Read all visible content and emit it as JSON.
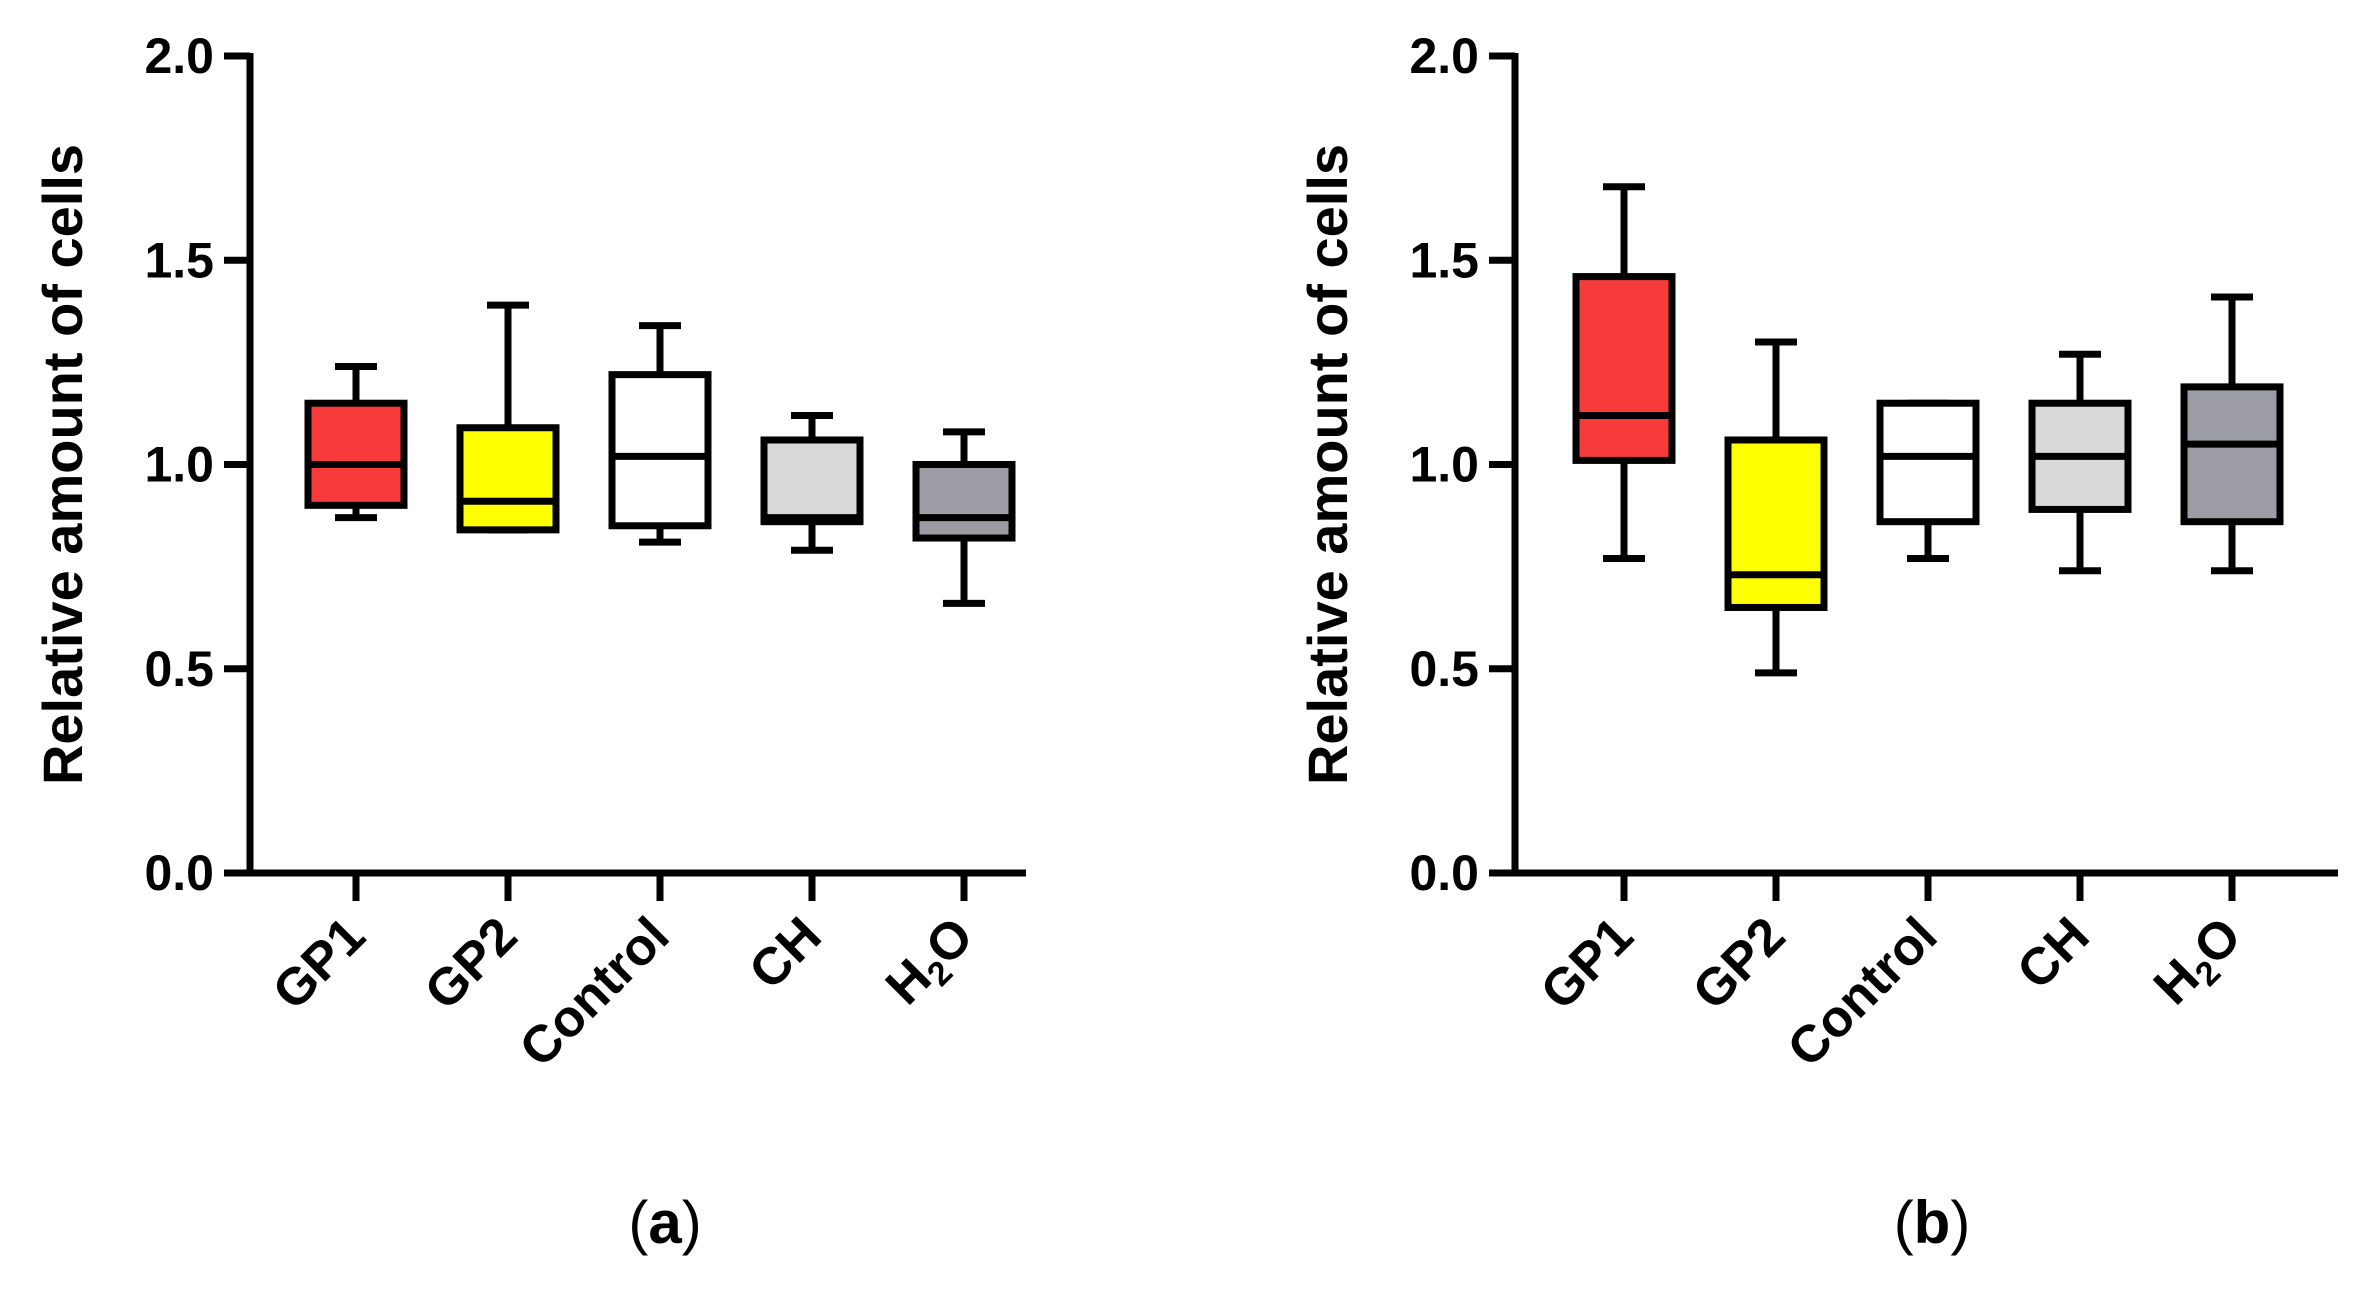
{
  "chart_data": [
    {
      "type": "box",
      "panel_label": "a",
      "ylabel": "Relative amount of cells",
      "ylim": [
        0,
        2
      ],
      "yticks": [
        {
          "value": 0.0,
          "label": "0.0"
        },
        {
          "value": 0.5,
          "label": "0.5"
        },
        {
          "value": 1.0,
          "label": "1.0"
        },
        {
          "value": 1.5,
          "label": "1.5"
        },
        {
          "value": 2.0,
          "label": "2.0"
        }
      ],
      "groups": [
        {
          "main": "GP1",
          "sub": "",
          "end": "",
          "color": "#f73b3b",
          "min": 0.87,
          "q1": 0.9,
          "median": 1.0,
          "q3": 1.15,
          "max": 1.24
        },
        {
          "main": "GP2",
          "sub": "",
          "end": "",
          "color": "#ffff00",
          "min": 0.84,
          "q1": 0.84,
          "median": 0.91,
          "q3": 1.09,
          "max": 1.39
        },
        {
          "main": "Control",
          "sub": "",
          "end": "",
          "color": "#ffffff",
          "min": 0.81,
          "q1": 0.85,
          "median": 1.02,
          "q3": 1.22,
          "max": 1.34
        },
        {
          "main": "CH",
          "sub": "",
          "end": "",
          "color": "#d9d9d9",
          "min": 0.79,
          "q1": 0.86,
          "median": 0.87,
          "q3": 1.06,
          "max": 1.12
        },
        {
          "main": "H",
          "sub": "2",
          "end": "O",
          "color": "#9c9ca4",
          "min": 0.66,
          "q1": 0.82,
          "median": 0.87,
          "q3": 1.0,
          "max": 1.08
        }
      ]
    },
    {
      "type": "box",
      "panel_label": "b",
      "ylabel": "Relative amount of cells",
      "ylim": [
        0,
        2
      ],
      "yticks": [
        {
          "value": 0.0,
          "label": "0.0"
        },
        {
          "value": 0.5,
          "label": "0.5"
        },
        {
          "value": 1.0,
          "label": "1.0"
        },
        {
          "value": 1.5,
          "label": "1.5"
        },
        {
          "value": 2.0,
          "label": "2.0"
        }
      ],
      "groups": [
        {
          "main": "GP1",
          "sub": "",
          "end": "",
          "color": "#f73b3b",
          "min": 0.77,
          "q1": 1.01,
          "median": 1.12,
          "q3": 1.46,
          "max": 1.68
        },
        {
          "main": "GP2",
          "sub": "",
          "end": "",
          "color": "#ffff00",
          "min": 0.49,
          "q1": 0.65,
          "median": 0.73,
          "q3": 1.06,
          "max": 1.3
        },
        {
          "main": "Control",
          "sub": "",
          "end": "",
          "color": "#ffffff",
          "min": 0.77,
          "q1": 0.86,
          "median": 1.02,
          "q3": 1.15,
          "max": 1.15
        },
        {
          "main": "CH",
          "sub": "",
          "end": "",
          "color": "#d9d9d9",
          "min": 0.74,
          "q1": 0.89,
          "median": 1.02,
          "q3": 1.15,
          "max": 1.27
        },
        {
          "main": "H",
          "sub": "2",
          "end": "O",
          "color": "#9c9ca4",
          "min": 0.74,
          "q1": 0.86,
          "median": 1.05,
          "q3": 1.19,
          "max": 1.41
        }
      ]
    }
  ]
}
